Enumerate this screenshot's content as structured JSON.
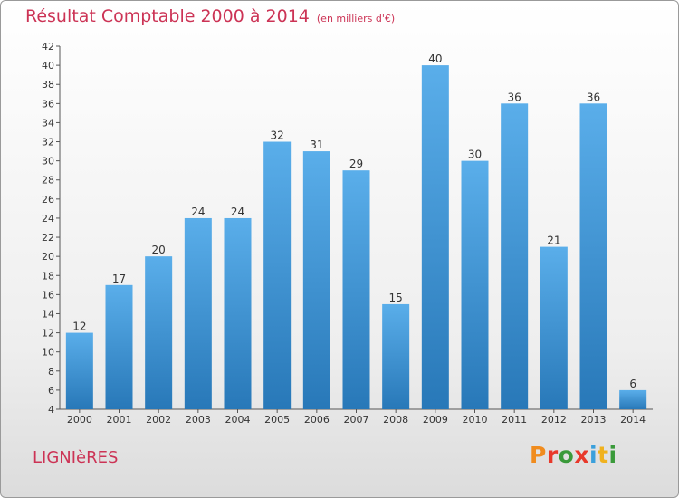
{
  "header": {
    "title": "Résultat Comptable 2000 à 2014",
    "unit": "(en milliers d'€)"
  },
  "footer": {
    "town": "LIGNIèRES",
    "brand_letters": [
      "P",
      "r",
      "o",
      "x",
      "i",
      "t",
      "i"
    ],
    "brand_colors": [
      "#f08c1e",
      "#e8392b",
      "#3a9a3a",
      "#e8392b",
      "#3aa0dc",
      "#f0b21e",
      "#3a9a3a"
    ]
  },
  "colors": {
    "bar_light": "#5aaeea",
    "bar_dark": "#2878b8",
    "title": "#cc3355"
  },
  "chart_data": {
    "type": "bar",
    "categories": [
      "2000",
      "2001",
      "2002",
      "2003",
      "2004",
      "2005",
      "2006",
      "2007",
      "2008",
      "2009",
      "2010",
      "2011",
      "2012",
      "2013",
      "2014"
    ],
    "values": [
      12,
      17,
      20,
      24,
      24,
      32,
      31,
      29,
      15,
      40,
      30,
      36,
      21,
      36,
      6
    ],
    "ylim": [
      4,
      42
    ],
    "yticks": [
      4,
      6,
      8,
      10,
      12,
      14,
      16,
      18,
      20,
      22,
      24,
      26,
      28,
      30,
      32,
      34,
      36,
      38,
      40,
      42
    ],
    "grid": false
  }
}
